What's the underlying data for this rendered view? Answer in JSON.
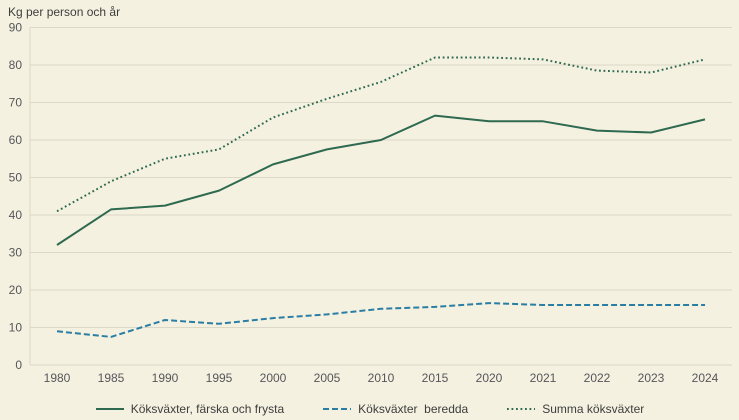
{
  "title": "Kg per person och år",
  "colors": {
    "background": "#f5f1e1",
    "grid": "#dcd8c7",
    "tick_text": "#55565a",
    "title_text": "#3d3e3d",
    "green": "#2e6a50",
    "blue": "#2a7ea4"
  },
  "chart_data": {
    "type": "line",
    "title": "Kg per person och år",
    "xlabel": "",
    "ylabel": "Kg per person och år",
    "ylim": [
      0,
      90
    ],
    "ytick_step": 10,
    "grid": true,
    "legend_position": "bottom",
    "categories": [
      "1980",
      "1985",
      "1990",
      "1995",
      "2000",
      "2005",
      "2010",
      "2015",
      "2020",
      "2021",
      "2022",
      "2023",
      "2024"
    ],
    "series": [
      {
        "name": "Köksväxter, färska och frysta",
        "style": "solid",
        "color_key": "green",
        "values": [
          32,
          41.5,
          42.5,
          46.5,
          53.5,
          57.5,
          60,
          66.5,
          65,
          65,
          62.5,
          62,
          65.5
        ]
      },
      {
        "name": "Köksväxter  beredda",
        "style": "dashed",
        "color_key": "blue",
        "values": [
          9,
          7.5,
          12,
          11,
          12.5,
          13.5,
          15,
          15.5,
          16.5,
          16,
          16,
          16,
          16
        ]
      },
      {
        "name": "Summa köksväxter",
        "style": "dotted",
        "color_key": "green",
        "values": [
          41,
          49,
          55,
          57.5,
          66,
          71,
          75.5,
          82,
          82,
          81.5,
          78.5,
          78,
          81.5
        ]
      }
    ]
  }
}
